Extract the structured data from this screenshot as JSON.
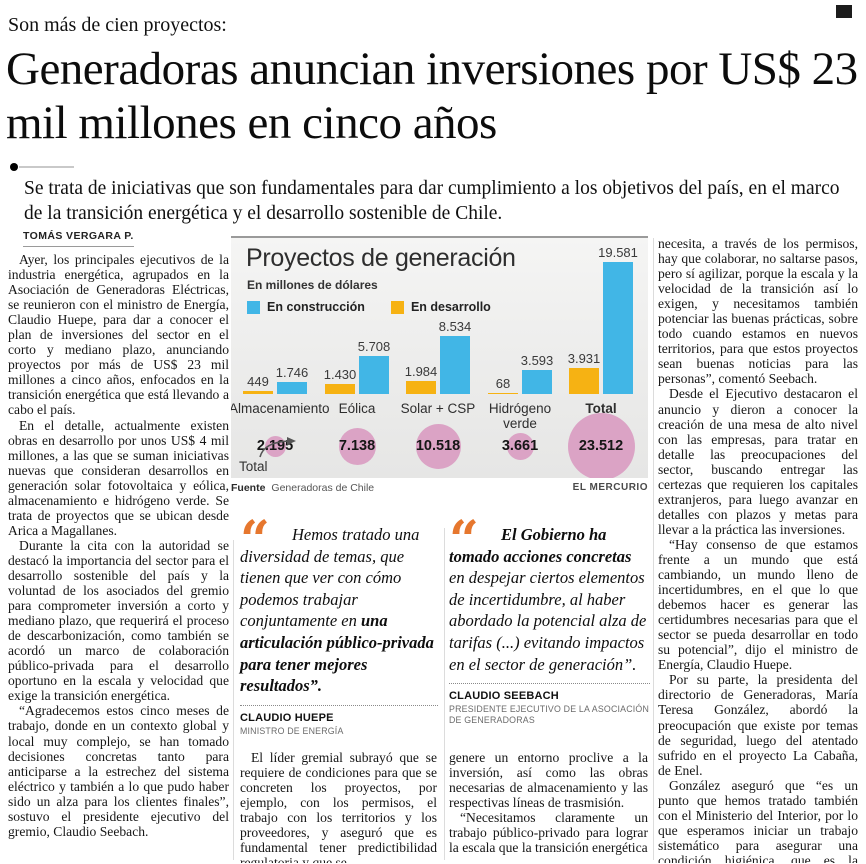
{
  "page": {
    "kicker": "Son más de cien proyectos:",
    "headline": "Generadoras anuncian inversiones por US$ 23 mil millones en cinco años",
    "deck": "Se trata de iniciativas que son fundamentales para dar cumplimiento a los objetivos del país, en el marco de la transición energética y el desarrollo sostenible de Chile.",
    "byline": "TOMÁS VERGARA P."
  },
  "article": {
    "col1": {
      "first_indent": true,
      "paragraphs": [
        "Ayer, los principales ejecutivos de la industria energética, agrupados en la Asociación de Generadoras Eléctricas, se reunieron con el ministro de Energía, Claudio Huepe, para dar a conocer el plan de inversiones del sector en el corto y mediano plazo, anunciando proyectos por más de US$ 23 mil millones a cinco años, enfocados en la transición energética que está llevando a cabo el país.",
        "En el detalle, actualmente existen obras en desarrollo por unos US$ 4 mil millones, a las que se suman iniciativas nuevas que consideran desarrollos en generación solar fotovoltaica y eólica, almacenamiento e hidrógeno verde. Se trata de proyectos que se ubican desde Arica a Magallanes.",
        "Durante la cita con la autoridad se destacó la importancia del sector para el desarrollo sostenible del país y la voluntad de los asociados del gremio para comprometer inversión a corto y mediano plazo, que requerirá el proceso de descarbonización, como también se acordó un marco de colaboración público-privada para el desarrollo oportuno en la escala y velocidad que exige la transición energética.",
        "“Agradecemos estos cinco meses de trabajo, donde en un contexto global y local muy complejo, se han tomado decisiones concretas tanto para anticiparse a la estrechez del sistema eléctrico y también a lo que pudo haber sido un alza para los clientes finales”, sostuvo el presidente ejecutivo del gremio, Claudio Seebach."
      ]
    },
    "col2_bottom": {
      "first_indent": true,
      "paragraphs": [
        "El líder gremial subrayó que se requiere de condiciones para que se concreten los proyectos, por ejemplo, con los permisos, el trabajo con los territorios y los proveedores, y aseguró que es fundamental tener predictibilidad regulatoria y que se"
      ]
    },
    "col3_bottom": {
      "first_indent": false,
      "paragraphs": [
        "genere un entorno proclive a la inversión, así como las obras necesarias de almacenamiento y las respectivas líneas de trasmisión.",
        "“Necesitamos claramente un trabajo público-privado para lograr la escala que la transición energética"
      ]
    },
    "col4": {
      "first_indent": false,
      "paragraphs": [
        "necesita, a través de los permisos, hay que colaborar, no saltarse pasos, pero sí agilizar, porque la escala y la velocidad de la transición así lo exigen, y necesitamos también potenciar las buenas prácticas, sobre todo cuando estamos en nuevos territorios, para que estos proyectos sean buenas noticias para las personas”, comentó Seebach.",
        "Desde el Ejecutivo destacaron el anuncio y dieron a conocer la creación de una mesa de alto nivel con las empresas, para tratar en detalle las preocupaciones del sector, buscando entregar las certezas que requieren los capitales extranjeros, para luego avanzar en detalles con plazos y metas para llevar a la práctica las inversiones.",
        "“Hay consenso de que estamos frente a un mundo que está cambiando, un mundo lleno de incertidumbres, en el que lo que debemos hacer es generar las certidumbres necesarias para que el sector se pueda desarrollar en todo su potencial”, dijo el ministro de Energía, Claudio Huepe.",
        "Por su parte, la presidenta del directorio de Generadoras, María Teresa González, abordó la preocupación que existe por temas de seguridad, luego del atentado sufrido en el proyecto La Cabaña, de Enel.",
        "González aseguró que “es un punto que hemos tratado también con el Ministerio del Interior, por lo que esperamos iniciar un trabajo sistemático para asegurar una condición higiénica, que es la seguridad para el desarrollo de nuestros proyectos”."
      ]
    }
  },
  "quotes": [
    {
      "segments": [
        {
          "text": "Hemos tratado una diversidad de temas, que tienen que ver con cómo podemos trabajar conjuntamente en ",
          "bold": false
        },
        {
          "text": "una articulación público-privada para tener mejores resultados”.",
          "bold": true
        }
      ],
      "author": "CLAUDIO HUEPE",
      "role": "MINISTRO DE ENERGÍA"
    },
    {
      "segments": [
        {
          "text": "El Gobierno ha tomado acciones concretas ",
          "bold": true
        },
        {
          "text": "en despejar ciertos elementos de incertidumbre, al haber abordado la potencial alza de tarifas (...) evitando impactos en el sector de generación”.",
          "bold": false
        }
      ],
      "author": "CLAUDIO SEEBACH",
      "role": "PRESIDENTE EJECUTIVO DE LA ASOCIACIÓN DE GENERADORAS"
    }
  ],
  "chart_data": {
    "type": "bar",
    "title": "Proyectos de generación",
    "subtitle": "En millones de dólares",
    "categories": [
      "Almacenamiento",
      "Eólica",
      "Solar + CSP",
      "Hidrógeno verde",
      "Total"
    ],
    "series": [
      {
        "name": "En construcción",
        "color": "#41b6e6",
        "values": [
          1746,
          5708,
          8534,
          3593,
          19581
        ],
        "labels": [
          "1.746",
          "5.708",
          "8.534",
          "3.593",
          "19.581"
        ]
      },
      {
        "name": "En desarrollo",
        "color": "#f6b213",
        "values": [
          449,
          1430,
          1984,
          68,
          3931
        ],
        "labels": [
          "449",
          "1.430",
          "1.984",
          "68",
          "3.931"
        ]
      }
    ],
    "totals": {
      "label": "Total",
      "values": [
        2195,
        7138,
        10518,
        3661,
        23512
      ],
      "labels": [
        "2.195",
        "7.138",
        "10.518",
        "3.661",
        "23.512"
      ],
      "bubble_color": "#dba3c5"
    },
    "ylim": [
      0,
      19581
    ],
    "legend_position": "top-left",
    "grid": false,
    "source_label": "Fuente",
    "source": "Generadoras de Chile",
    "credit": "EL MERCURIO"
  },
  "colors": {
    "accent_orange": "#e6772e",
    "bar_blue": "#41b6e6",
    "bar_yellow": "#f6b213",
    "bubble_pink": "#dba3c5"
  }
}
